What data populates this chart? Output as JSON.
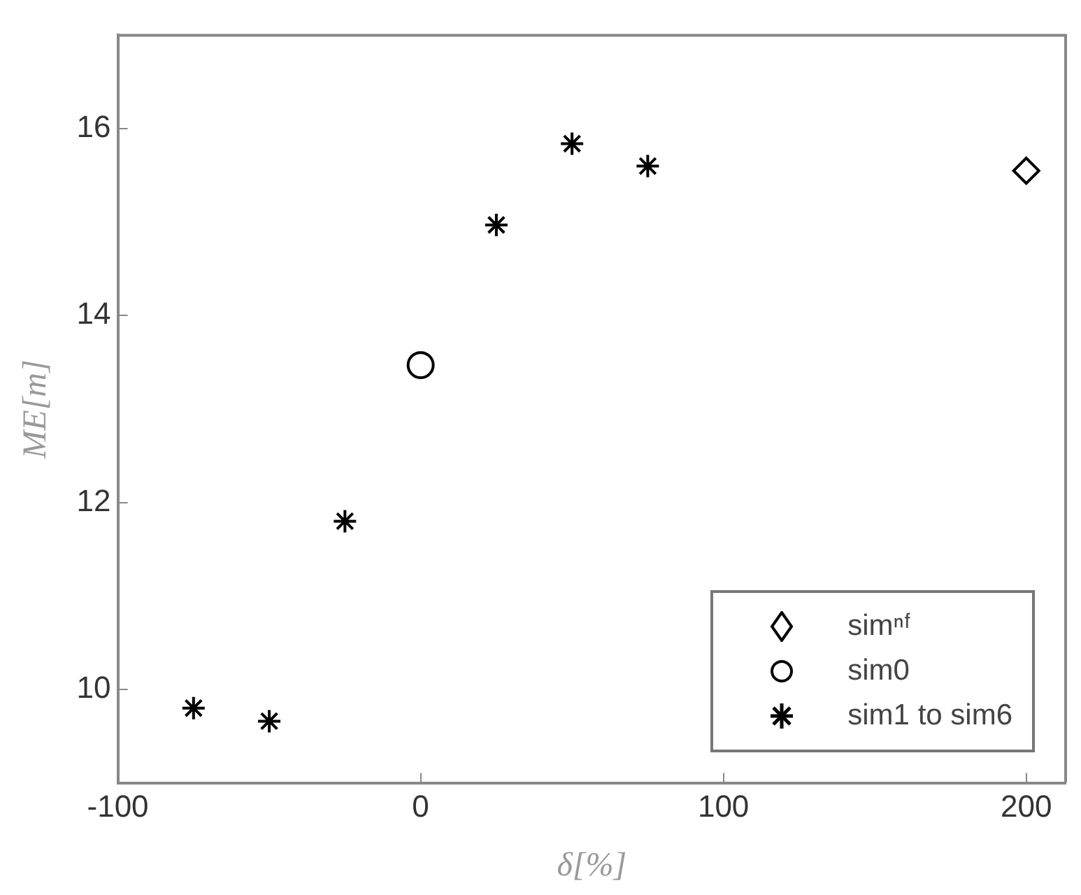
{
  "chart_data": {
    "type": "scatter",
    "xlabel": "δ[%]",
    "ylabel": "ME[m]",
    "xlim": [
      -100,
      213
    ],
    "xticks": [
      -100,
      0,
      100,
      200
    ],
    "ylim": [
      9,
      17
    ],
    "yticks": [
      10,
      12,
      14,
      16
    ],
    "grid": false,
    "legend": "bottom right",
    "series": [
      {
        "name": "simⁿᶠ",
        "color": "#000000",
        "marker": "diamond",
        "x": [
          200
        ],
        "values": [
          15.55
        ]
      },
      {
        "name": "sim0",
        "color": "#000000",
        "marker": "circle",
        "x": [
          0
        ],
        "values": [
          13.47
        ]
      },
      {
        "name": "sim1 to sim6",
        "color": "#000000",
        "marker": "cross",
        "x": [
          -75,
          -50,
          -25,
          25,
          50,
          75
        ],
        "values": [
          9.8,
          9.66,
          11.8,
          14.97,
          15.84,
          15.6
        ]
      }
    ]
  }
}
